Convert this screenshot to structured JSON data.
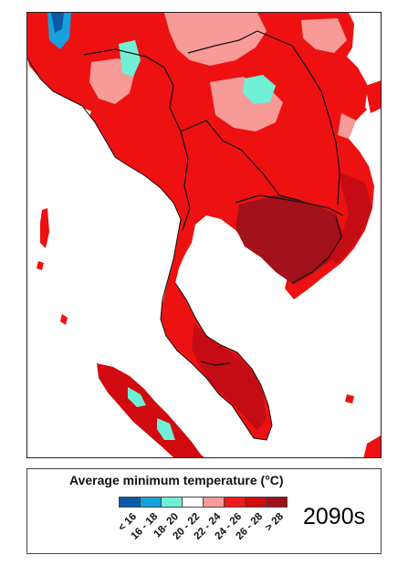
{
  "legend": {
    "title": "Average minimum temperature (°C)",
    "classes": [
      {
        "label": "< 16",
        "color": "#0b5aa8"
      },
      {
        "label": "16 - 18",
        "color": "#17a1dc"
      },
      {
        "label": "18- 20",
        "color": "#6ff0d6"
      },
      {
        "label": "20 - 22",
        "color": "#ffffff"
      },
      {
        "label": "22 - 24",
        "color": "#f79a98"
      },
      {
        "label": "24 - 26",
        "color": "#f21a1a"
      },
      {
        "label": "26 - 28",
        "color": "#d10a10"
      },
      {
        "label": "> 28",
        "color": "#a2111a"
      }
    ]
  },
  "period_label": "2090s",
  "map": {
    "sea_color": "#ffffff",
    "border_color": "#111111"
  }
}
